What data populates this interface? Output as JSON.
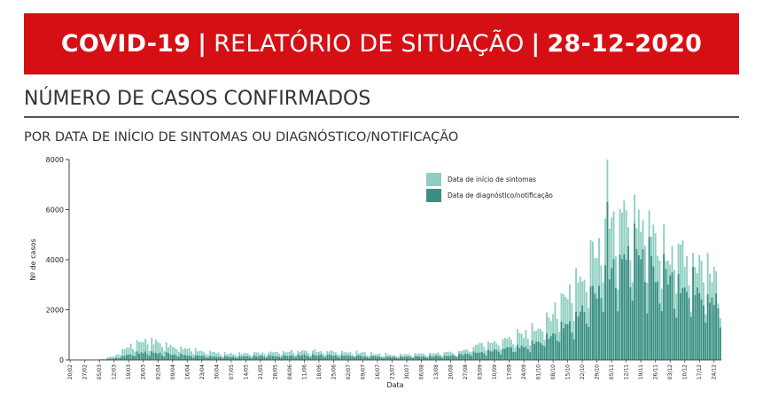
{
  "header": {
    "part1": "COVID-19",
    "separator": "|",
    "part2": "RELATÓRIO DE SITUAÇÃO",
    "part3": "28-12-2020",
    "background_color": "#d50f14"
  },
  "section": {
    "title": "NÚMERO DE CASOS CONFIRMADOS",
    "subtitle": "POR DATA DE INÍCIO DE SINTOMAS OU DIAGNÓSTICO/NOTIFICAÇÃO"
  },
  "chart_data": {
    "type": "bar",
    "stacking": "overlaid",
    "xlabel": "Data",
    "ylabel": "Nº de casos",
    "ylim": [
      0,
      8000
    ],
    "yticks": [
      0,
      2000,
      4000,
      6000,
      8000
    ],
    "x_range": [
      "2020-02-20",
      "2020-12-27"
    ],
    "grid": false,
    "legend_position": "top-right",
    "tick_labels": [
      "20/02",
      "27/02",
      "05/03",
      "12/03",
      "19/03",
      "26/03",
      "02/04",
      "09/04",
      "16/04",
      "23/04",
      "30/04",
      "07/05",
      "14/05",
      "21/05",
      "28/05",
      "04/06",
      "11/06",
      "18/06",
      "25/06",
      "02/07",
      "09/07",
      "16/07",
      "23/07",
      "30/07",
      "06/08",
      "13/08",
      "20/08",
      "27/08",
      "03/09",
      "10/09",
      "17/09",
      "24/09",
      "01/10",
      "08/10",
      "15/10",
      "22/10",
      "29/10",
      "05/11",
      "12/11",
      "19/11",
      "26/11",
      "03/12",
      "10/12",
      "17/12",
      "24/12"
    ],
    "series": [
      {
        "name": "Data de início de sintomas",
        "color": "#8fcfc2",
        "weekly_values": [
          0,
          0,
          10,
          150,
          550,
          750,
          700,
          550,
          450,
          350,
          280,
          250,
          250,
          270,
          300,
          350,
          380,
          360,
          340,
          320,
          280,
          240,
          200,
          220,
          230,
          260,
          300,
          400,
          600,
          700,
          850,
          1000,
          1350,
          1900,
          2700,
          3500,
          4700,
          5200,
          5800,
          5600,
          4800,
          4300,
          4200,
          3700,
          3400
        ],
        "peak": {
          "date": "2020-11-03",
          "value": 8000
        }
      },
      {
        "name": "Data de diagnóstico/notificação",
        "color": "#3a8f83",
        "weekly_values": [
          0,
          0,
          5,
          60,
          200,
          300,
          280,
          220,
          180,
          150,
          130,
          120,
          130,
          150,
          160,
          180,
          200,
          190,
          180,
          170,
          150,
          130,
          110,
          120,
          130,
          150,
          180,
          220,
          300,
          380,
          450,
          550,
          750,
          1000,
          1500,
          2000,
          2800,
          3500,
          4300,
          4100,
          3500,
          3100,
          3000,
          2700,
          2500
        ],
        "peak": {
          "date": "2020-11-03",
          "value": 6300
        }
      }
    ]
  }
}
